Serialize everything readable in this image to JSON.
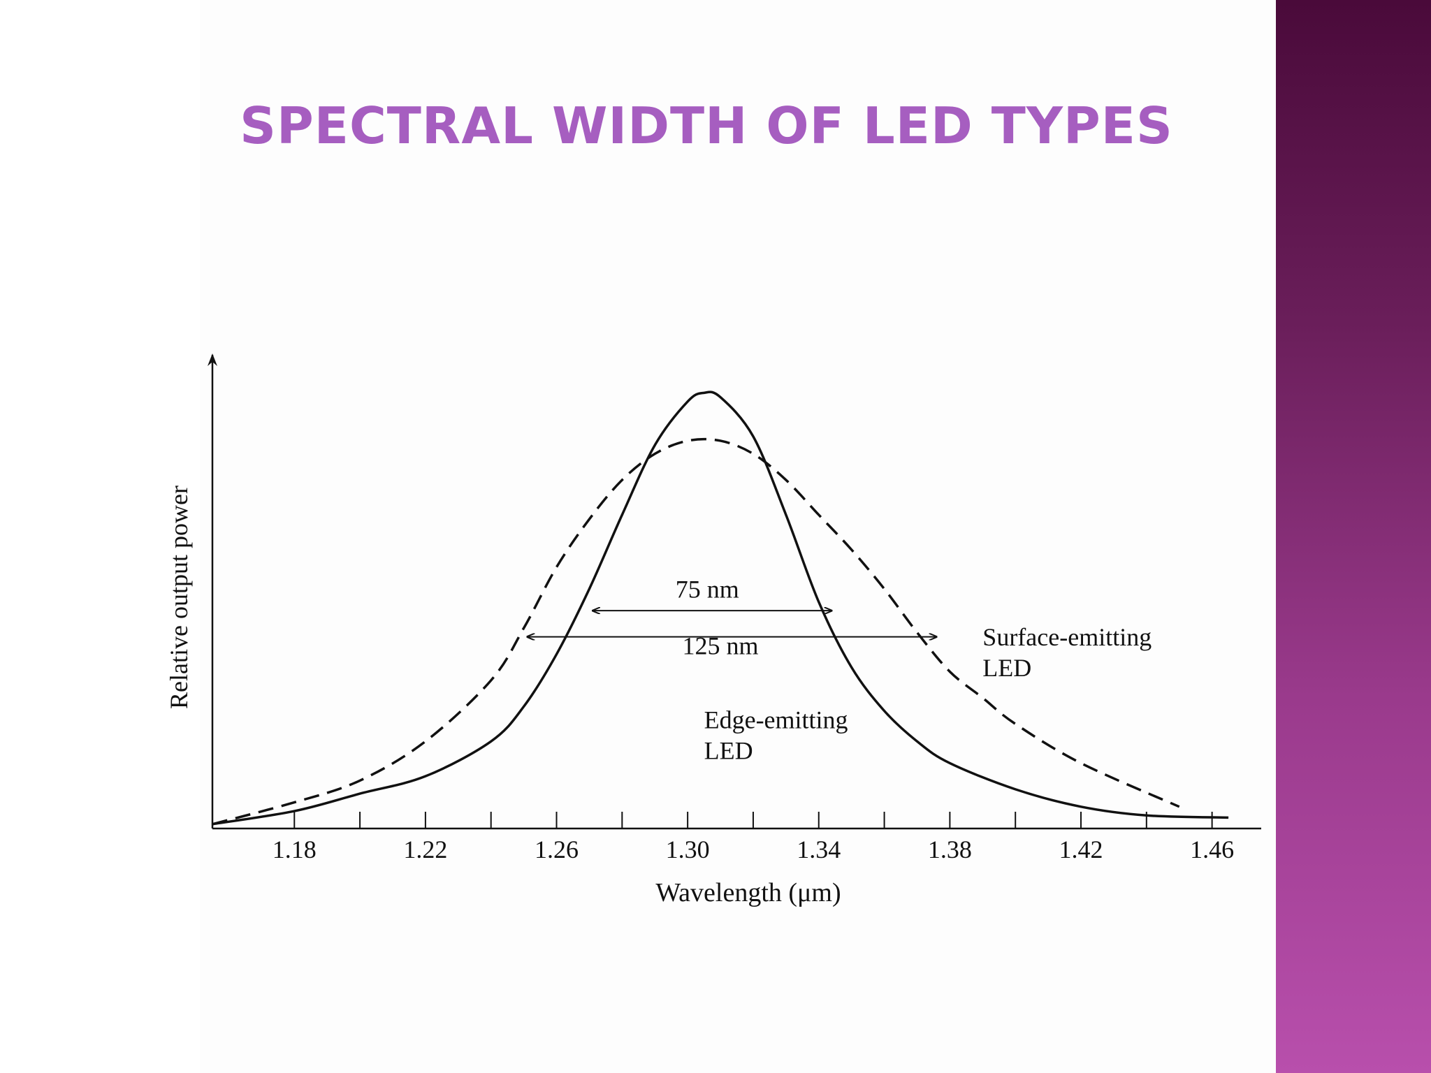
{
  "slide": {
    "title": "SPECTRAL WIDTH OF LED TYPES",
    "title_color": "#a65ec0",
    "band_colors": [
      "#4a0a3a",
      "#b84fac"
    ]
  },
  "chart_data": {
    "type": "line",
    "title": "",
    "xlabel": "Wavelength (μm)",
    "ylabel": "Relative output power",
    "xlim": [
      1.155,
      1.475
    ],
    "ylim": [
      0,
      1.1
    ],
    "x_ticks": [
      1.18,
      1.22,
      1.26,
      1.3,
      1.34,
      1.38,
      1.42,
      1.46
    ],
    "x_tick_labels": [
      "1.18",
      "1.22",
      "1.26",
      "1.30",
      "1.34",
      "1.38",
      "1.42",
      "1.46"
    ],
    "x_minor_ticks": [
      1.2,
      1.24,
      1.28,
      1.32,
      1.36,
      1.4,
      1.44
    ],
    "grid": false,
    "series": [
      {
        "name": "Edge-emitting LED",
        "style": "solid",
        "x": [
          1.155,
          1.18,
          1.2,
          1.22,
          1.24,
          1.25,
          1.26,
          1.27,
          1.28,
          1.29,
          1.3,
          1.305,
          1.31,
          1.32,
          1.33,
          1.34,
          1.35,
          1.36,
          1.37,
          1.38,
          1.4,
          1.42,
          1.44,
          1.465
        ],
        "y": [
          0.01,
          0.04,
          0.08,
          0.12,
          0.2,
          0.28,
          0.4,
          0.55,
          0.72,
          0.88,
          0.98,
          1.0,
          0.99,
          0.9,
          0.72,
          0.52,
          0.37,
          0.27,
          0.2,
          0.15,
          0.09,
          0.05,
          0.03,
          0.025
        ]
      },
      {
        "name": "Surface-emitting LED",
        "style": "dashed",
        "x": [
          1.155,
          1.18,
          1.2,
          1.22,
          1.24,
          1.25,
          1.26,
          1.27,
          1.28,
          1.29,
          1.3,
          1.31,
          1.32,
          1.33,
          1.34,
          1.35,
          1.36,
          1.37,
          1.38,
          1.39,
          1.4,
          1.42,
          1.45
        ],
        "y": [
          0.01,
          0.06,
          0.11,
          0.2,
          0.34,
          0.46,
          0.6,
          0.71,
          0.8,
          0.86,
          0.89,
          0.89,
          0.86,
          0.8,
          0.72,
          0.64,
          0.55,
          0.45,
          0.36,
          0.3,
          0.24,
          0.15,
          0.05
        ]
      }
    ],
    "annotations": [
      {
        "label": "75 nm",
        "x_start": 1.271,
        "x_end": 1.344,
        "y": 0.5,
        "text_x": 1.306,
        "text_y": 0.53
      },
      {
        "label": "125 nm",
        "x_start": 1.251,
        "x_end": 1.376,
        "y": 0.44,
        "text_x": 1.31,
        "text_y": 0.4
      }
    ],
    "series_labels": [
      {
        "lines": [
          "Surface-emitting",
          "LED"
        ],
        "x": 1.39,
        "y": 0.42
      },
      {
        "lines": [
          "Edge-emitting",
          "LED"
        ],
        "x": 1.305,
        "y": 0.23
      }
    ]
  }
}
